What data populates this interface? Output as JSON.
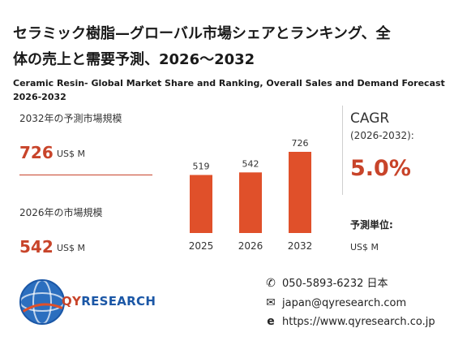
{
  "title": {
    "jp_line1": "セラミック樹脂—グローバル市場シェアとランキング、全",
    "jp_line2": "体の売上と需要予測、2026～2032",
    "en_line1": "Ceramic Resin- Global Market Share and Ranking, Overall Sales and Demand Forecast",
    "en_line2": "2026-2032"
  },
  "stats": {
    "forecast_label": "2032年の予測市場規模",
    "forecast_value": "726",
    "forecast_unit": "US$ M",
    "current_label": "2026年の市場規模",
    "current_value": "542",
    "current_unit": "US$ M"
  },
  "cagr": {
    "label": "CAGR",
    "years": "(2026-2032):",
    "value": "5.0%",
    "unit_label": "予測単位:",
    "unit_value": "US$ M"
  },
  "contact": {
    "phone": "050-5893-6232 日本",
    "email": "japan@qyresearch.com",
    "website": "https://www.qyresearch.co.jp"
  },
  "logo": {
    "text_q": "QY",
    "text_rest": "RESEARCH"
  },
  "colors": {
    "accent": "#c8442a",
    "bar": "#e0502a",
    "brand_blue": "#1b57a6"
  },
  "icons": {
    "phone": "phone-icon",
    "email": "envelope-icon",
    "website": "globe-e-icon"
  },
  "chart_data": {
    "type": "bar",
    "categories": [
      "2025",
      "2026",
      "2032"
    ],
    "values": [
      519,
      542,
      726
    ],
    "title": "",
    "xlabel": "",
    "ylabel": "",
    "ylim": [
      0,
      800
    ],
    "grid": false
  }
}
